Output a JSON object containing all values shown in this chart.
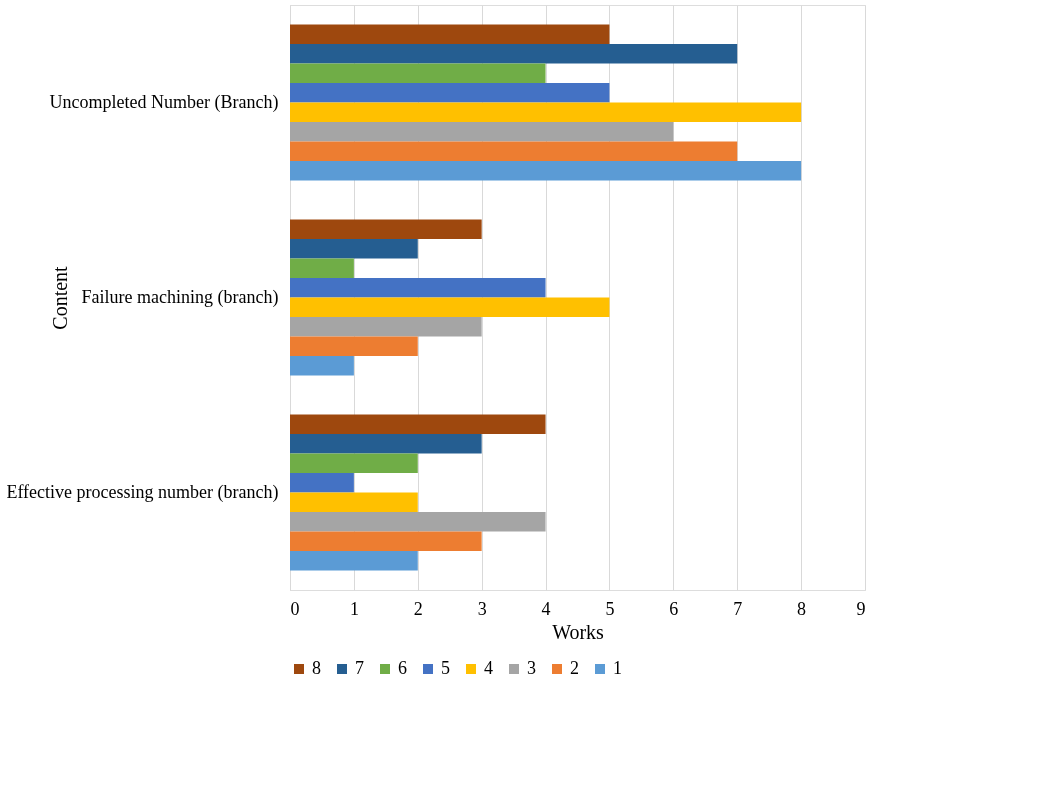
{
  "chart_data": {
    "type": "bar",
    "orientation": "horizontal",
    "xlabel": "Works",
    "ylabel": "Content",
    "categories": [
      "Uncompleted Number (Branch)",
      "Failure machining (branch)",
      "Effective processing number (branch)"
    ],
    "series": [
      {
        "name": "8",
        "color": "#9e480e",
        "values": [
          5,
          3,
          4
        ]
      },
      {
        "name": "7",
        "color": "#255e91",
        "values": [
          7,
          2,
          3
        ]
      },
      {
        "name": "6",
        "color": "#70ad47",
        "values": [
          4,
          1,
          2
        ]
      },
      {
        "name": "5",
        "color": "#4472c4",
        "values": [
          5,
          4,
          1
        ]
      },
      {
        "name": "4",
        "color": "#ffc000",
        "values": [
          8,
          5,
          2
        ]
      },
      {
        "name": "3",
        "color": "#a5a5a5",
        "values": [
          6,
          3,
          4
        ]
      },
      {
        "name": "2",
        "color": "#ed7d31",
        "values": [
          7,
          2,
          3
        ]
      },
      {
        "name": "1",
        "color": "#5b9bd5",
        "values": [
          8,
          1,
          2
        ]
      }
    ],
    "xlim": [
      0,
      9
    ],
    "xticks": [
      0,
      1,
      2,
      3,
      4,
      5,
      6,
      7,
      8,
      9
    ],
    "grid": "x",
    "legend": "bottom"
  }
}
